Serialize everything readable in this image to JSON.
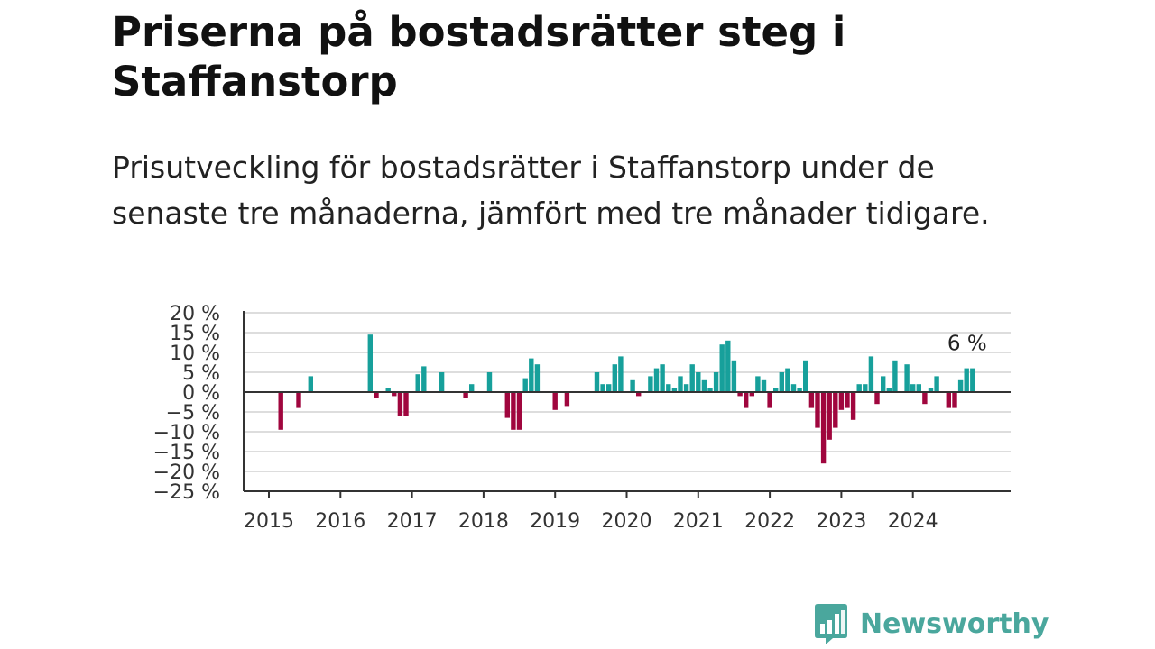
{
  "header": {
    "title": "Priserna på bostadsrätter steg i Staffanstorp",
    "subtitle": "Prisutveckling för bostadsrätter i Staffanstorp under de senaste tre månaderna, jämfört med tre månader tidigare."
  },
  "brand": {
    "name": "Newsworthy",
    "color": "#4aa79d",
    "icon": "bar-chart-speech-bubble-icon"
  },
  "chart_data": {
    "type": "bar",
    "title": "",
    "xlabel": "",
    "ylabel": "",
    "ylim": [
      -25,
      20
    ],
    "yticks": [
      "20 %",
      "15 %",
      "10 %",
      "5 %",
      "0 %",
      "−5 %",
      "−10 %",
      "−15 %",
      "−20 %",
      "−25 %"
    ],
    "ytick_values": [
      20,
      15,
      10,
      5,
      0,
      -5,
      -10,
      -15,
      -20,
      -25
    ],
    "xticks": [
      "2015",
      "2016",
      "2017",
      "2018",
      "2019",
      "2020",
      "2021",
      "2022",
      "2023",
      "2024"
    ],
    "grid": true,
    "positive_color": "#17a09b",
    "negative_color": "#a0063e",
    "last_value_label": "6 %",
    "series": [
      {
        "values": [
          {
            "date": "2015-03",
            "value": -9.5
          },
          {
            "date": "2015-06",
            "value": -4
          },
          {
            "date": "2015-08",
            "value": 4
          },
          {
            "date": "2016-06",
            "value": 14.5
          },
          {
            "date": "2016-07",
            "value": -1.5
          },
          {
            "date": "2016-09",
            "value": 1
          },
          {
            "date": "2016-10",
            "value": -1
          },
          {
            "date": "2016-11",
            "value": -6
          },
          {
            "date": "2016-12",
            "value": -6
          },
          {
            "date": "2017-02",
            "value": 4.5
          },
          {
            "date": "2017-03",
            "value": 6.5
          },
          {
            "date": "2017-06",
            "value": 5
          },
          {
            "date": "2017-10",
            "value": -1.5
          },
          {
            "date": "2017-11",
            "value": 2
          },
          {
            "date": "2018-02",
            "value": 5
          },
          {
            "date": "2018-05",
            "value": -6.5
          },
          {
            "date": "2018-06",
            "value": -9.5
          },
          {
            "date": "2018-07",
            "value": -9.5
          },
          {
            "date": "2018-08",
            "value": 3.5
          },
          {
            "date": "2018-09",
            "value": 8.5
          },
          {
            "date": "2018-10",
            "value": 7
          },
          {
            "date": "2019-01",
            "value": -4.5
          },
          {
            "date": "2019-03",
            "value": -3.5
          },
          {
            "date": "2019-08",
            "value": 5
          },
          {
            "date": "2019-09",
            "value": 2
          },
          {
            "date": "2019-10",
            "value": 2
          },
          {
            "date": "2019-11",
            "value": 7
          },
          {
            "date": "2019-12",
            "value": 9
          },
          {
            "date": "2020-02",
            "value": 3
          },
          {
            "date": "2020-03",
            "value": -1
          },
          {
            "date": "2020-05",
            "value": 4
          },
          {
            "date": "2020-06",
            "value": 6
          },
          {
            "date": "2020-07",
            "value": 7
          },
          {
            "date": "2020-08",
            "value": 2
          },
          {
            "date": "2020-09",
            "value": 1
          },
          {
            "date": "2020-10",
            "value": 4
          },
          {
            "date": "2020-11",
            "value": 2
          },
          {
            "date": "2020-12",
            "value": 7
          },
          {
            "date": "2021-01",
            "value": 5
          },
          {
            "date": "2021-02",
            "value": 3
          },
          {
            "date": "2021-03",
            "value": 1
          },
          {
            "date": "2021-04",
            "value": 5
          },
          {
            "date": "2021-05",
            "value": 12
          },
          {
            "date": "2021-06",
            "value": 13
          },
          {
            "date": "2021-07",
            "value": 8
          },
          {
            "date": "2021-08",
            "value": -1
          },
          {
            "date": "2021-09",
            "value": -4
          },
          {
            "date": "2021-10",
            "value": -1
          },
          {
            "date": "2021-11",
            "value": 4
          },
          {
            "date": "2021-12",
            "value": 3
          },
          {
            "date": "2022-01",
            "value": -4
          },
          {
            "date": "2022-02",
            "value": 1
          },
          {
            "date": "2022-03",
            "value": 5
          },
          {
            "date": "2022-04",
            "value": 6
          },
          {
            "date": "2022-05",
            "value": 2
          },
          {
            "date": "2022-06",
            "value": 1
          },
          {
            "date": "2022-07",
            "value": 8
          },
          {
            "date": "2022-08",
            "value": -4
          },
          {
            "date": "2022-09",
            "value": -9
          },
          {
            "date": "2022-10",
            "value": -18
          },
          {
            "date": "2022-11",
            "value": -12
          },
          {
            "date": "2022-12",
            "value": -9
          },
          {
            "date": "2023-01",
            "value": -4.5
          },
          {
            "date": "2023-02",
            "value": -4
          },
          {
            "date": "2023-03",
            "value": -7
          },
          {
            "date": "2023-04",
            "value": 2
          },
          {
            "date": "2023-05",
            "value": 2
          },
          {
            "date": "2023-06",
            "value": 9
          },
          {
            "date": "2023-07",
            "value": -3
          },
          {
            "date": "2023-08",
            "value": 4
          },
          {
            "date": "2023-09",
            "value": 1
          },
          {
            "date": "2023-10",
            "value": 8
          },
          {
            "date": "2023-12",
            "value": 7
          },
          {
            "date": "2024-01",
            "value": 2
          },
          {
            "date": "2024-02",
            "value": 2
          },
          {
            "date": "2024-03",
            "value": -3
          },
          {
            "date": "2024-04",
            "value": 1
          },
          {
            "date": "2024-05",
            "value": 4
          },
          {
            "date": "2024-07",
            "value": -4
          },
          {
            "date": "2024-08",
            "value": -4
          },
          {
            "date": "2024-09",
            "value": 3
          },
          {
            "date": "2024-10",
            "value": 6
          },
          {
            "date": "2024-11",
            "value": 6
          }
        ]
      }
    ]
  }
}
